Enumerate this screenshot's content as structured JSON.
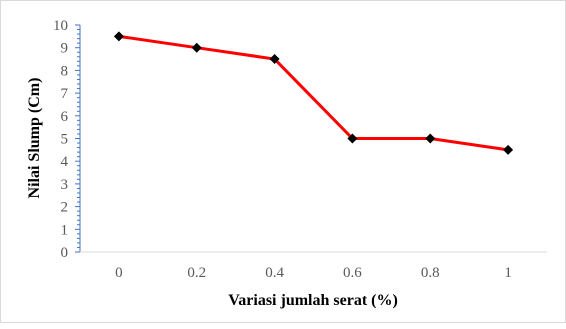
{
  "chart_data": {
    "type": "line",
    "x": [
      "0",
      "0.2",
      "0.4",
      "0.6",
      "0.8",
      "1"
    ],
    "series": [
      {
        "values": [
          9.5,
          9.0,
          8.5,
          5.0,
          5.0,
          4.5
        ]
      }
    ],
    "xlabel": "Variasi jumlah serat (%)",
    "ylabel": "Nilai Slump (Cm)",
    "ylim": [
      0,
      10
    ],
    "yticks": [
      "0",
      "1",
      "2",
      "3",
      "4",
      "5",
      "6",
      "7",
      "8",
      "9",
      "10"
    ],
    "grid": false,
    "legend": "none",
    "line_color": "#ff0000",
    "marker_color": "#000000",
    "marker": "diamond"
  }
}
